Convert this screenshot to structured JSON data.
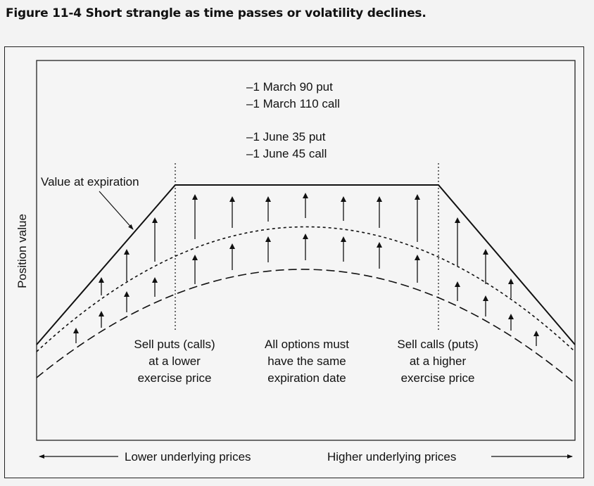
{
  "figure_title": "Figure 11-4  Short strangle as time passes or volatility declines.",
  "positions": [
    "–1 March 90 put",
    "–1 March 110 call",
    "–1 June 35 put",
    "–1 June 45 call"
  ],
  "y_axis_label": "Position value",
  "expiration_label": "Value at expiration",
  "annotations": {
    "left": [
      "Sell puts (calls)",
      "at a lower",
      "exercise price"
    ],
    "center": [
      "All options must",
      "have the same",
      "expiration date"
    ],
    "right": [
      "Sell calls (puts)",
      "at a higher",
      "exercise price"
    ]
  },
  "x_axis": {
    "left_label": "Lower underlying prices",
    "right_label": "Higher underlying prices"
  },
  "colors": {
    "line": "#111111",
    "background": "#f5f5f5"
  }
}
